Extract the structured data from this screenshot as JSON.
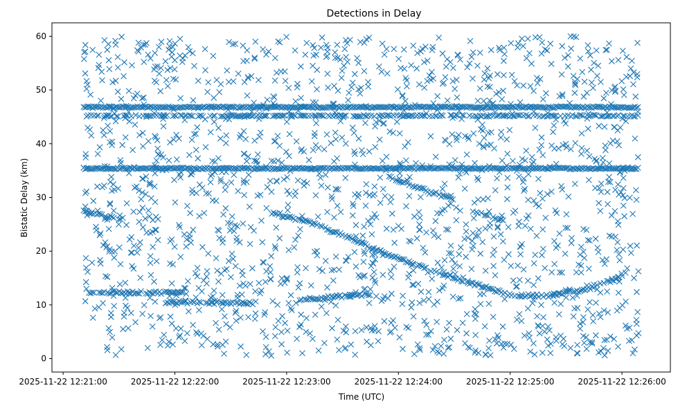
{
  "chart_data": {
    "type": "scatter",
    "title": "Detections in Delay",
    "xlabel": "Time (UTC)",
    "ylabel": "Bistatic Delay (km)",
    "marker": "x",
    "color": "#1f77b4",
    "grid": false,
    "legend": "none",
    "xlim": [
      "2025-11-22 12:20:54",
      "2025-11-22 12:26:26"
    ],
    "ylim": [
      -2.5,
      62.5
    ],
    "xticks": [
      "2025-11-22 12:21:00",
      "2025-11-22 12:22:00",
      "2025-11-22 12:23:00",
      "2025-11-22 12:24:00",
      "2025-11-22 12:25:00",
      "2025-11-22 12:26:00"
    ],
    "yticks": [
      0,
      10,
      20,
      30,
      40,
      50,
      60
    ],
    "time_range": [
      "2025-11-22 12:21:11",
      "2025-11-22 12:26:09"
    ],
    "series": [
      {
        "kind": "constant",
        "description": "continuous horizontal band",
        "delay_km": 46.8,
        "t_start": "2025-11-22 12:21:11",
        "t_end": "2025-11-22 12:26:09"
      },
      {
        "kind": "constant",
        "description": "continuous horizontal band",
        "delay_km": 35.4,
        "t_start": "2025-11-22 12:21:11",
        "t_end": "2025-11-22 12:26:09"
      },
      {
        "kind": "constant",
        "description": "intermittent horizontal band",
        "delay_km": 45.2,
        "t_start": "2025-11-22 12:21:11",
        "t_end": "2025-11-22 12:26:09"
      },
      {
        "kind": "track",
        "points": [
          [
            "2025-11-22 12:22:52",
            27.0
          ],
          [
            "2025-11-22 12:23:10",
            25.6
          ],
          [
            "2025-11-22 12:23:30",
            23.0
          ],
          [
            "2025-11-22 12:23:50",
            20.0
          ],
          [
            "2025-11-22 12:24:10",
            17.4
          ],
          [
            "2025-11-22 12:24:30",
            15.0
          ],
          [
            "2025-11-22 12:24:50",
            12.9
          ],
          [
            "2025-11-22 12:25:00",
            11.8
          ],
          [
            "2025-11-22 12:25:20",
            11.7
          ],
          [
            "2025-11-22 12:25:40",
            12.8
          ],
          [
            "2025-11-22 12:26:00",
            15.2
          ],
          [
            "2025-11-22 12:26:03",
            16.8
          ]
        ]
      },
      {
        "kind": "track",
        "points": [
          [
            "2025-11-22 12:23:07",
            11.0
          ],
          [
            "2025-11-22 12:23:45",
            12.0
          ]
        ]
      },
      {
        "kind": "track",
        "points": [
          [
            "2025-11-22 12:21:11",
            27.4
          ],
          [
            "2025-11-22 12:21:31",
            25.9
          ]
        ]
      },
      {
        "kind": "track",
        "points": [
          [
            "2025-11-22 12:21:13",
            12.3
          ],
          [
            "2025-11-22 12:22:07",
            12.3
          ]
        ]
      },
      {
        "kind": "track",
        "points": [
          [
            "2025-11-22 12:23:55",
            33.8
          ],
          [
            "2025-11-22 12:24:30",
            29.5
          ]
        ]
      },
      {
        "kind": "track",
        "points": [
          [
            "2025-11-22 12:24:40",
            27.5
          ],
          [
            "2025-11-22 12:24:57",
            25.6
          ]
        ]
      },
      {
        "kind": "track",
        "points": [
          [
            "2025-11-22 12:21:55",
            10.5
          ],
          [
            "2025-11-22 12:22:42",
            10.3
          ]
        ]
      },
      {
        "kind": "noise",
        "description": "scattered uniform detections",
        "delay_range": [
          0.5,
          60.0
        ],
        "approx_count": 1700
      }
    ]
  }
}
